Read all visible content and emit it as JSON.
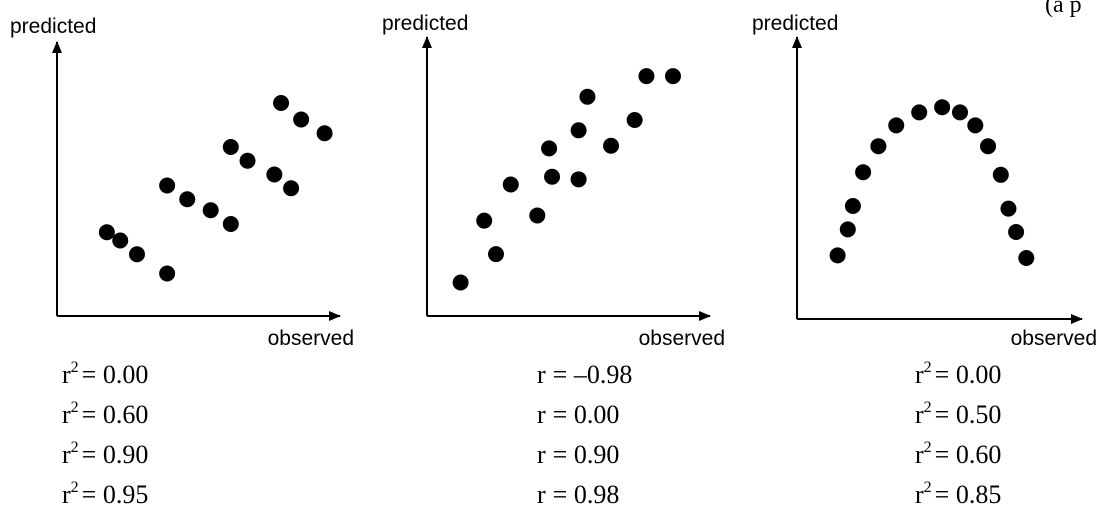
{
  "corner_text": "(a p",
  "chart_data": [
    {
      "type": "scatter",
      "xlabel": "observed",
      "ylabel": "predicted",
      "points": [
        [
          1.1,
          2.5
        ],
        [
          1.5,
          2.2
        ],
        [
          2.0,
          1.7
        ],
        [
          2.9,
          1.0
        ],
        [
          2.9,
          4.2
        ],
        [
          3.5,
          3.7
        ],
        [
          4.2,
          3.3
        ],
        [
          4.8,
          2.8
        ],
        [
          4.8,
          5.6
        ],
        [
          5.3,
          5.1
        ],
        [
          6.1,
          4.6
        ],
        [
          6.6,
          4.1
        ],
        [
          6.3,
          7.2
        ],
        [
          6.9,
          6.6
        ],
        [
          7.6,
          6.1
        ]
      ],
      "options": [
        {
          "stat": "r",
          "sup": "2",
          "value": "= 0.00"
        },
        {
          "stat": "r",
          "sup": "2",
          "value": "= 0.60"
        },
        {
          "stat": "r",
          "sup": "2",
          "value": "= 0.90"
        },
        {
          "stat": "r",
          "sup": "2",
          "value": "= 0.95"
        }
      ]
    },
    {
      "type": "scatter",
      "xlabel": "observed",
      "ylabel": "predicted",
      "points": [
        [
          0.8,
          0.6
        ],
        [
          1.6,
          3.0
        ],
        [
          2.0,
          1.7
        ],
        [
          2.5,
          4.4
        ],
        [
          3.4,
          3.2
        ],
        [
          3.8,
          5.8
        ],
        [
          3.9,
          4.7
        ],
        [
          4.8,
          4.6
        ],
        [
          4.8,
          6.5
        ],
        [
          5.1,
          7.8
        ],
        [
          5.9,
          5.9
        ],
        [
          6.7,
          6.9
        ],
        [
          7.1,
          8.6
        ],
        [
          8.0,
          8.6
        ]
      ],
      "options": [
        {
          "stat": "r",
          "sup": "",
          "value": "= –0.98"
        },
        {
          "stat": "r",
          "sup": "",
          "value": "= 0.00"
        },
        {
          "stat": "r",
          "sup": "",
          "value": "= 0.90"
        },
        {
          "stat": "r",
          "sup": "",
          "value": "= 0.98"
        }
      ]
    },
    {
      "type": "scatter",
      "xlabel": "observed",
      "ylabel": "predicted",
      "points": [
        [
          1.2,
          2.1
        ],
        [
          1.6,
          3.1
        ],
        [
          1.8,
          4.0
        ],
        [
          2.2,
          5.3
        ],
        [
          2.8,
          6.3
        ],
        [
          3.5,
          7.1
        ],
        [
          4.4,
          7.6
        ],
        [
          5.3,
          7.8
        ],
        [
          6.0,
          7.6
        ],
        [
          6.6,
          7.1
        ],
        [
          7.1,
          6.3
        ],
        [
          7.6,
          5.2
        ],
        [
          7.9,
          3.9
        ],
        [
          8.2,
          3.0
        ],
        [
          8.6,
          2.0
        ]
      ],
      "options": [
        {
          "stat": "r",
          "sup": "2",
          "value": "= 0.00"
        },
        {
          "stat": "r",
          "sup": "2",
          "value": "= 0.50"
        },
        {
          "stat": "r",
          "sup": "2",
          "value": "= 0.60"
        },
        {
          "stat": "r",
          "sup": "2",
          "value": "= 0.85"
        }
      ]
    }
  ]
}
